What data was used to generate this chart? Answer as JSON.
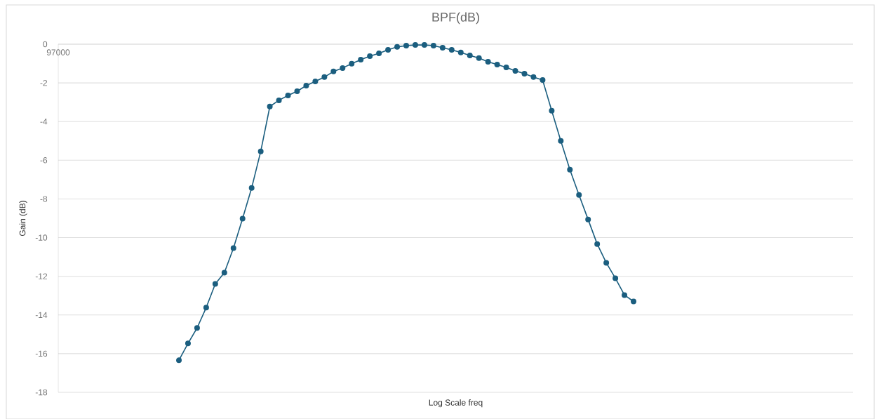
{
  "chart_data": {
    "type": "line",
    "title": "BPF(dB)",
    "xlabel": "Log Scale freq",
    "ylabel": "Gain (dB)",
    "categories": [
      null,
      null,
      null,
      null,
      null,
      null,
      null,
      null,
      null,
      null,
      null,
      null,
      null,
      null,
      null,
      null,
      null,
      null,
      null,
      null,
      null,
      null,
      null,
      null,
      null,
      null,
      null,
      null,
      null,
      null,
      null,
      null,
      null,
      null,
      null,
      null,
      null,
      null,
      null,
      null,
      null,
      null,
      null,
      null,
      null,
      null,
      null,
      null,
      null,
      null,
      null
    ],
    "series": [
      {
        "color": "#1b5e7f",
        "values": [
          -16.34,
          -15.47,
          -14.67,
          -13.62,
          -12.39,
          -11.81,
          -10.54,
          -9.02,
          -7.43,
          -5.54,
          -3.22,
          -2.9,
          -2.65,
          -2.43,
          -2.14,
          -1.92,
          -1.7,
          -1.41,
          -1.23,
          -1.01,
          -0.8,
          -0.62,
          -0.47,
          -0.29,
          -0.14,
          -0.07,
          -0.04,
          -0.04,
          -0.07,
          -0.18,
          -0.29,
          -0.43,
          -0.58,
          -0.72,
          -0.91,
          -1.05,
          -1.2,
          -1.38,
          -1.52,
          -1.7,
          -1.85,
          -3.44,
          -5.0,
          -6.49,
          -7.79,
          -9.06,
          -10.33,
          -11.3,
          -12.1,
          -12.97,
          -13.3
        ]
      }
    ],
    "annotations": [
      "97000"
    ],
    "ylim": [
      -18,
      0
    ],
    "yticks": [
      -18,
      -16,
      -14,
      -12,
      -10,
      -8,
      -6,
      -4,
      -2,
      0
    ],
    "grid": "y",
    "marker": "circle",
    "line_style": "solid"
  }
}
